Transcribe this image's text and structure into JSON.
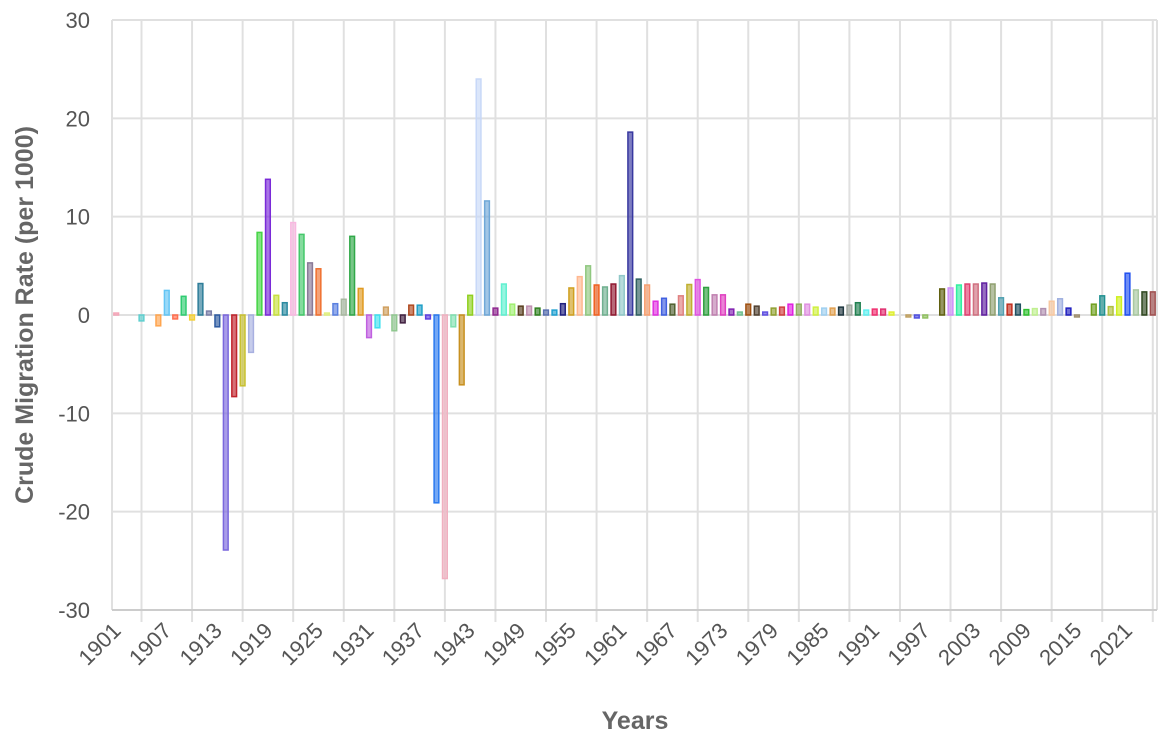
{
  "chart_data": {
    "type": "bar",
    "title": "",
    "xlabel": "Years",
    "ylabel": "Crude Migration Rate (per 1000)",
    "ylim": [
      -30,
      30
    ],
    "yticks": [
      -30,
      -20,
      -10,
      0,
      10,
      20,
      30
    ],
    "grid": true,
    "legend": "none",
    "x_tick_labels": [
      "1901",
      "1907",
      "1913",
      "1919",
      "1925",
      "1931",
      "1937",
      "1943",
      "1949",
      "1955",
      "1961",
      "1967",
      "1973",
      "1979",
      "1985",
      "1991",
      "1997",
      "2003",
      "2009",
      "2015",
      "2021"
    ],
    "categories": [
      1901,
      1902,
      1903,
      1904,
      1905,
      1906,
      1907,
      1908,
      1909,
      1910,
      1911,
      1912,
      1913,
      1914,
      1915,
      1916,
      1917,
      1918,
      1919,
      1920,
      1921,
      1922,
      1923,
      1924,
      1925,
      1926,
      1927,
      1928,
      1929,
      1930,
      1931,
      1932,
      1933,
      1934,
      1935,
      1936,
      1937,
      1938,
      1939,
      1940,
      1941,
      1942,
      1943,
      1944,
      1945,
      1946,
      1947,
      1948,
      1949,
      1950,
      1951,
      1952,
      1953,
      1954,
      1955,
      1956,
      1957,
      1958,
      1959,
      1960,
      1961,
      1962,
      1963,
      1964,
      1965,
      1966,
      1967,
      1968,
      1969,
      1970,
      1971,
      1972,
      1973,
      1974,
      1975,
      1976,
      1977,
      1978,
      1979,
      1980,
      1981,
      1982,
      1983,
      1984,
      1985,
      1986,
      1987,
      1988,
      1989,
      1990,
      1991,
      1992,
      1993,
      1994,
      1995,
      1996,
      1997,
      1998,
      1999,
      2000,
      2001,
      2002,
      2003,
      2004,
      2005,
      2006,
      2007,
      2008,
      2009,
      2010,
      2011,
      2012,
      2013,
      2014,
      2015,
      2016,
      2017,
      2018,
      2019,
      2020,
      2021,
      2022,
      2023,
      2024
    ],
    "values": [
      0.2,
      0,
      0,
      -0.6,
      0,
      -1.1,
      2.5,
      -0.4,
      1.9,
      -0.5,
      3.2,
      0.4,
      -1.2,
      -23.9,
      -8.3,
      -7.2,
      -3.8,
      8.4,
      13.8,
      2.0,
      1.25,
      9.4,
      8.2,
      5.3,
      4.7,
      0.2,
      1.15,
      1.6,
      8.0,
      2.7,
      -2.3,
      -1.3,
      0.8,
      -1.6,
      -0.8,
      1.0,
      1.0,
      -0.4,
      -19.1,
      -26.8,
      -1.2,
      -7.1,
      2.0,
      24.0,
      11.6,
      0.7,
      3.15,
      1.1,
      0.9,
      0.9,
      0.7,
      0.5,
      0.5,
      1.15,
      2.75,
      3.9,
      5.0,
      3.05,
      2.85,
      3.15,
      4.0,
      18.6,
      3.65,
      3.05,
      1.4,
      1.7,
      1.1,
      1.95,
      3.1,
      3.6,
      2.8,
      2.05,
      2.05,
      0.6,
      0.3,
      1.1,
      0.9,
      0.3,
      0.7,
      0.8,
      1.1,
      1.1,
      1.1,
      0.8,
      0.7,
      0.7,
      0.8,
      1.0,
      1.25,
      0.5,
      0.6,
      0.6,
      0.3,
      0,
      -0.2,
      -0.3,
      -0.3,
      0,
      2.65,
      2.75,
      3.05,
      3.15,
      3.15,
      3.25,
      3.15,
      1.75,
      1.1,
      1.1,
      0.55,
      0.65,
      0.65,
      1.4,
      1.65,
      0.7,
      -0.2,
      0,
      1.1,
      1.95,
      0.85,
      1.85,
      4.25,
      2.55,
      2.35,
      2.35
    ],
    "colors": [
      "#f4a6b8",
      "#cccccc",
      "#cccccc",
      "#5fcfcf",
      "#cccccc",
      "#ffa54f",
      "#63c5f5",
      "#ff6f4f",
      "#2ecc71",
      "#f5d033",
      "#2e7d99",
      "#7b7fa8",
      "#2d5aa0",
      "#7b68dd",
      "#c0242c",
      "#c8c030",
      "#a8b0e0",
      "#44d444",
      "#7a2ad8",
      "#c8e040",
      "#2a8aa0",
      "#f8b8e0",
      "#44c86a",
      "#8a7a98",
      "#f07030",
      "#e0f080",
      "#5a80e0",
      "#a8b8a0",
      "#30a848",
      "#e09a20",
      "#c060e0",
      "#40e0f0",
      "#d0a060",
      "#90c890",
      "#402040",
      "#b04a20",
      "#20a0c8",
      "#6040e0",
      "#2a7af0",
      "#f0b0c0",
      "#80e0b0",
      "#c89020",
      "#90d020",
      "#c8d8f8",
      "#70a8d8",
      "#902890",
      "#60f0d0",
      "#a0f070",
      "#5a4020",
      "#c090b0",
      "#308020",
      "#5870b0",
      "#20a0d0",
      "#202080",
      "#d0a020",
      "#ffb890",
      "#90c880",
      "#f06020",
      "#70b090",
      "#901830",
      "#90c8c8",
      "#3838a0",
      "#306060",
      "#f8a070",
      "#e030e0",
      "#4060e0",
      "#506030",
      "#e08080",
      "#c0b030",
      "#e050e0",
      "#30a040",
      "#c080b0",
      "#e040c0",
      "#8020b0",
      "#70c090",
      "#a05010",
      "#504030",
      "#6050e0",
      "#90a030",
      "#d04040",
      "#e020e0",
      "#90b060",
      "#e090e0",
      "#d0f040",
      "#a0d0f0",
      "#e0a050",
      "#203840",
      "#a0a8a0",
      "#208050",
      "#60f0f0",
      "#f03070",
      "#e03070",
      "#e0f030",
      "#cccccc",
      "#c0a060",
      "#5050e0",
      "#90c060",
      "#cccccc",
      "#606010",
      "#d090f8",
      "#30f0a0",
      "#e04070",
      "#d07080",
      "#6020a0",
      "#90a070",
      "#50a0b0",
      "#c03020",
      "#205060",
      "#30c030",
      "#c0f090",
      "#b090b0",
      "#f8c8a0",
      "#a0b0e0",
      "#2020c0",
      "#a09070",
      "#cccccc",
      "#70a020",
      "#209090",
      "#b0c040",
      "#d0f020",
      "#2050f0",
      "#a8c8a0",
      "#304820",
      "#a05050"
    ]
  }
}
